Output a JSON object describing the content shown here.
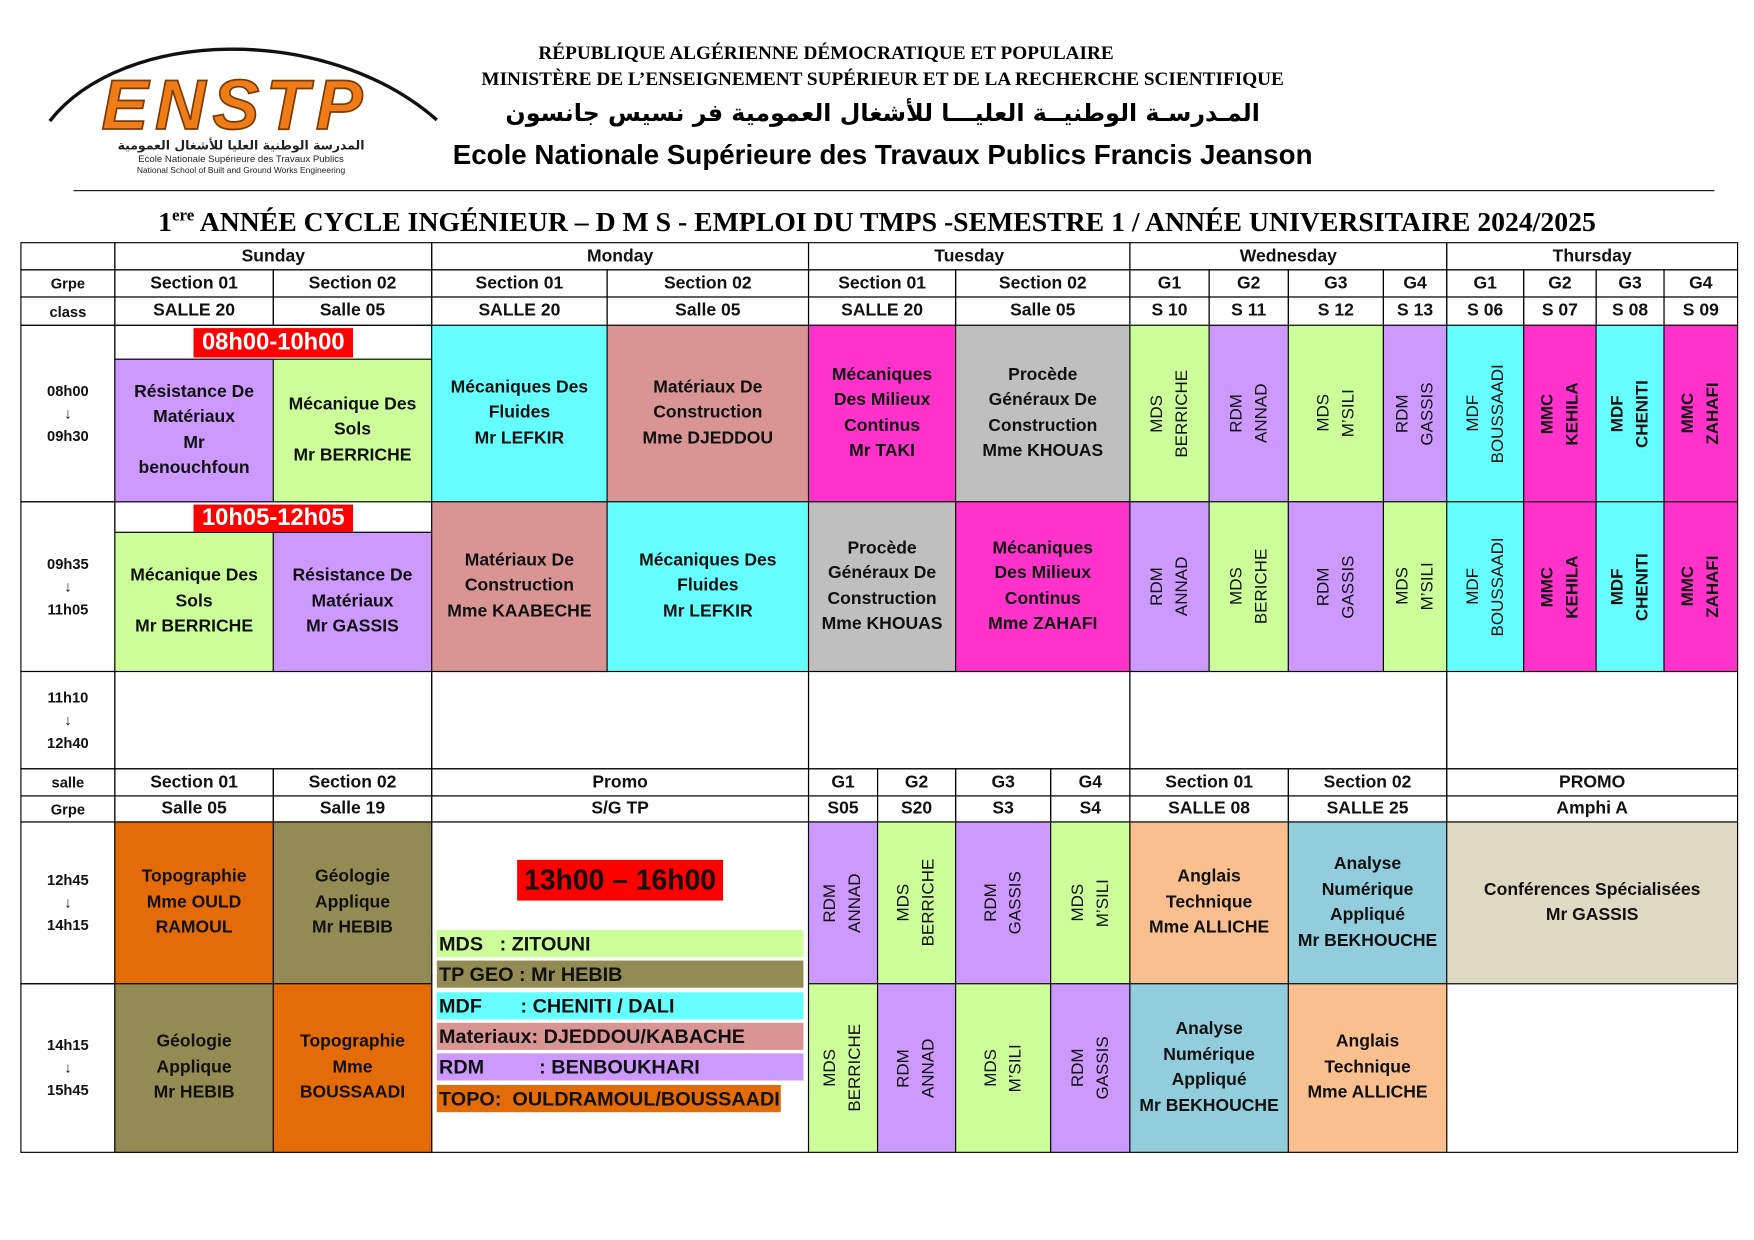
{
  "header": {
    "line1": "RÉPUBLIQUE ALGÉRIENNE DÉMOCRATIQUE ET POPULAIRE",
    "line2": "MINISTÈRE DE L’ENSEIGNEMENT SUPÉRIEUR ET DE LA RECHERCHE SCIENTIFIQUE",
    "arabic": "المـدرسـة الوطنيــة العليـــا للأشغال العمومية فر نسيس جانسون",
    "school": "Ecole Nationale Supérieure des Travaux Publics Francis Jeanson"
  },
  "logo": {
    "name": "ENSTP",
    "arabic": "المدرسة الوطنية العليا للأشغال العمومية",
    "fr": "Ecole Nationale Supérieure des Travaux Publics",
    "en": "National School of Built and Ground Works Engineering"
  },
  "title": {
    "number": "1",
    "suffix": "ere",
    "text": "ANNÉE CYCLE INGÉNIEUR – D M S - EMPLOI DU TMPS -SEMESTRE 1 / ANNÉE UNIVERSITAIRE 2024/2025"
  },
  "cells": [
    {
      "lines": [
        "Sunday"
      ]
    },
    {
      "lines": [
        "Monday"
      ]
    },
    {
      "lines": [
        "Tuesday"
      ]
    },
    {
      "lines": [
        "Wednesday"
      ]
    },
    {
      "lines": [
        "Thursday"
      ]
    },
    {
      "lines": [
        "Grpe"
      ]
    },
    {
      "lines": [
        "Section 01"
      ]
    },
    {
      "lines": [
        "Section 02"
      ]
    },
    {
      "lines": [
        "Section 01"
      ]
    },
    {
      "lines": [
        "Section 02"
      ]
    },
    {
      "lines": [
        "Section 01"
      ]
    },
    {
      "lines": [
        "Section 02"
      ]
    },
    {
      "lines": [
        "G1"
      ]
    },
    {
      "lines": [
        "G2"
      ]
    },
    {
      "lines": [
        "G3"
      ]
    },
    {
      "lines": [
        "G4"
      ]
    },
    {
      "lines": [
        "G1"
      ]
    },
    {
      "lines": [
        "G2"
      ]
    },
    {
      "lines": [
        "G3"
      ]
    },
    {
      "lines": [
        "G4"
      ]
    },
    {
      "lines": [
        "class"
      ]
    },
    {
      "lines": [
        "SALLE 20"
      ]
    },
    {
      "lines": [
        "Salle 05"
      ]
    },
    {
      "lines": [
        "SALLE 20"
      ]
    },
    {
      "lines": [
        "Salle 05"
      ]
    },
    {
      "lines": [
        "SALLE 20"
      ]
    },
    {
      "lines": [
        "Salle 05"
      ]
    },
    {
      "lines": [
        "S 10"
      ]
    },
    {
      "lines": [
        "S 11"
      ]
    },
    {
      "lines": [
        "S 12"
      ]
    },
    {
      "lines": [
        "S 13"
      ]
    },
    {
      "lines": [
        "S 06"
      ]
    },
    {
      "lines": [
        "S 07"
      ]
    },
    {
      "lines": [
        "S 08"
      ]
    },
    {
      "lines": [
        "S 09"
      ]
    },
    {
      "lines": [
        "08h00",
        "↓",
        "09h30"
      ]
    },
    {
      "lines": [
        "Résistance De",
        "Matériaux",
        "Mr",
        "benouchfoun"
      ],
      "color": "#cc99ff"
    },
    {
      "lines": [
        "Mécanique Des",
        "Sols",
        "Mr BERRICHE"
      ],
      "color": "#ccff99"
    },
    {
      "lines": [
        "Mécaniques Des",
        "Fluides",
        "Mr LEFKIR"
      ],
      "color": "#66ffff"
    },
    {
      "lines": [
        "Matériaux De",
        "Construction",
        "Mme DJEDDOU"
      ],
      "color": "#d99594"
    },
    {
      "lines": [
        "Mécaniques",
        "Des Milieux",
        "Continus",
        "Mr TAKI"
      ],
      "color": "#ff33cc"
    },
    {
      "lines": [
        "Procède",
        "Généraux De",
        "Construction",
        "Mme KHOUAS"
      ],
      "color": "#bfbfbf"
    },
    {
      "lines": [
        "MDS",
        "BERRICHE"
      ],
      "color": "#ccff99"
    },
    {
      "lines": [
        "RDM",
        "ANNAD"
      ],
      "color": "#cc99ff"
    },
    {
      "lines": [
        "MDS",
        "M’SILI"
      ],
      "color": "#ccff99"
    },
    {
      "lines": [
        "RDM",
        "GASSIS"
      ],
      "color": "#cc99ff"
    },
    {
      "lines": [
        "MDF",
        "BOUSSAADI"
      ],
      "color": "#66ffff"
    },
    {
      "lines": [
        "MMC",
        "KEHILA"
      ],
      "color": "#ff33cc"
    },
    {
      "lines": [
        "MDF",
        "CHENITI"
      ],
      "color": "#66ffff"
    },
    {
      "lines": [
        "MMC",
        "ZAHAFI"
      ],
      "color": "#ff33cc"
    },
    {
      "lines": [
        "09h35",
        "↓",
        "11h05"
      ]
    },
    {
      "lines": [
        "Mécanique Des",
        "Sols",
        "Mr BERRICHE"
      ],
      "color": "#ccff99"
    },
    {
      "lines": [
        "Résistance De",
        "Matériaux",
        "Mr GASSIS"
      ],
      "color": "#cc99ff"
    },
    {
      "lines": [
        "Matériaux De",
        "Construction",
        "Mme KAABECHE"
      ],
      "color": "#d99594"
    },
    {
      "lines": [
        "Mécaniques Des",
        "Fluides",
        "Mr LEFKIR"
      ],
      "color": "#66ffff"
    },
    {
      "lines": [
        "Procède",
        "Généraux De",
        "Construction",
        "Mme KHOUAS"
      ],
      "color": "#bfbfbf"
    },
    {
      "lines": [
        "Mécaniques",
        "Des Milieux",
        "Continus",
        "Mme ZAHAFI"
      ],
      "color": "#ff33cc"
    },
    {
      "lines": [
        "RDM",
        "ANNAD"
      ],
      "color": "#cc99ff"
    },
    {
      "lines": [
        "MDS",
        "BERICHE"
      ],
      "color": "#ccff99"
    },
    {
      "lines": [
        "RDM",
        "GASSIS"
      ],
      "color": "#cc99ff"
    },
    {
      "lines": [
        "MDS",
        "M’SILI"
      ],
      "color": "#ccff99"
    },
    {
      "lines": [
        "MDF",
        "BOUSSAADI"
      ],
      "color": "#66ffff"
    },
    {
      "lines": [
        "MMC",
        "KEHILA"
      ],
      "color": "#ff33cc"
    },
    {
      "lines": [
        "MDF",
        "CHENITI"
      ],
      "color": "#66ffff"
    },
    {
      "lines": [
        "MMC",
        "ZAHAFI"
      ],
      "color": "#ff33cc"
    },
    {
      "lines": [
        "11h10",
        "↓",
        "12h40"
      ]
    },
    {
      "lines": [
        "salle"
      ]
    },
    {
      "lines": [
        "Section 01"
      ]
    },
    {
      "lines": [
        "Section 02"
      ]
    },
    {
      "lines": [
        "Promo"
      ]
    },
    {
      "lines": [
        "G1"
      ]
    },
    {
      "lines": [
        "G2"
      ]
    },
    {
      "lines": [
        "G3"
      ]
    },
    {
      "lines": [
        "G4"
      ]
    },
    {
      "lines": [
        "Section 01"
      ]
    },
    {
      "lines": [
        "Section 02"
      ]
    },
    {
      "lines": [
        "PROMO"
      ]
    },
    {
      "lines": [
        "Grpe"
      ]
    },
    {
      "lines": [
        "Salle 05"
      ]
    },
    {
      "lines": [
        "Salle 19"
      ]
    },
    {
      "lines": [
        "S/G TP"
      ]
    },
    {
      "lines": [
        "S05"
      ]
    },
    {
      "lines": [
        "S20"
      ]
    },
    {
      "lines": [
        "S3"
      ]
    },
    {
      "lines": [
        "S4"
      ]
    },
    {
      "lines": [
        "SALLE 08"
      ]
    },
    {
      "lines": [
        "SALLE 25"
      ]
    },
    {
      "lines": [
        "Amphi A"
      ]
    },
    {
      "lines": [
        "12h45",
        "↓",
        "14h15"
      ]
    },
    {
      "lines": [
        "Topographie",
        "Mme OULD",
        "RAMOUL"
      ],
      "color": "#e36c09"
    },
    {
      "lines": [
        "Géologie",
        "Applique",
        "Mr HEBIB"
      ],
      "color": "#948a54"
    },
    {
      "lines": [
        "RDM",
        "ANNAD"
      ],
      "color": "#cc99ff"
    },
    {
      "lines": [
        "MDS",
        "BERRICHE"
      ],
      "color": "#ccff99"
    },
    {
      "lines": [
        "RDM",
        "GASSIS"
      ],
      "color": "#cc99ff"
    },
    {
      "lines": [
        "MDS",
        "M’SILI"
      ],
      "color": "#ccff99"
    },
    {
      "lines": [
        "Anglais",
        "Technique",
        "Mme ALLICHE"
      ],
      "color": "#fabf8f"
    },
    {
      "lines": [
        "Analyse",
        "Numérique",
        "Appliqué",
        "Mr BEKHOUCHE"
      ],
      "color": "#92cddc"
    },
    {
      "lines": [
        "Conférences Spécialisées",
        "Mr GASSIS"
      ],
      "color": "#ddd9c3"
    },
    {
      "lines": [
        "14h15",
        "↓",
        "15h45"
      ]
    },
    {
      "lines": [
        "Géologie",
        "Applique",
        "Mr HEBIB"
      ],
      "color": "#948a54"
    },
    {
      "lines": [
        "Topographie",
        "Mme",
        "BOUSSAADI"
      ],
      "color": "#e36c09"
    },
    {
      "lines": [
        "MDS",
        "BERRICHE"
      ],
      "color": "#ccff99"
    },
    {
      "lines": [
        "RDM",
        "ANNAD"
      ],
      "color": "#cc99ff"
    },
    {
      "lines": [
        "MDS",
        "M’SILI"
      ],
      "color": "#ccff99"
    },
    {
      "lines": [
        "RDM",
        "GASSIS"
      ],
      "color": "#cc99ff"
    },
    {
      "lines": [
        "Analyse",
        "Numérique",
        "Appliqué",
        "Mr BEKHOUCHE"
      ],
      "color": "#92cddc"
    },
    {
      "lines": [
        "Anglais",
        "Technique",
        "Mme ALLICHE"
      ],
      "color": "#fabf8f"
    }
  ],
  "badges": [
    "08h00-10h00",
    "10h05-12h05",
    "13h00 – 16h00"
  ],
  "legend": [
    {
      "text": "MDS   : ZITOUNI",
      "color": "#ccff99"
    },
    {
      "text": "TP GEO : Mr HEBIB",
      "color": "#948a54"
    },
    {
      "text": "MDF       : CHENITI / DALI",
      "color": "#66ffff"
    },
    {
      "text": "Materiaux: DJEDDOU/KABACHE",
      "color": "#d99594"
    },
    {
      "text": "RDM          : BENBOUKHARI",
      "color": "#cc99ff"
    },
    {
      "text": "TOPO:  OULDRAMOUL/BOUSSAADI",
      "color": "#e36c09"
    }
  ]
}
